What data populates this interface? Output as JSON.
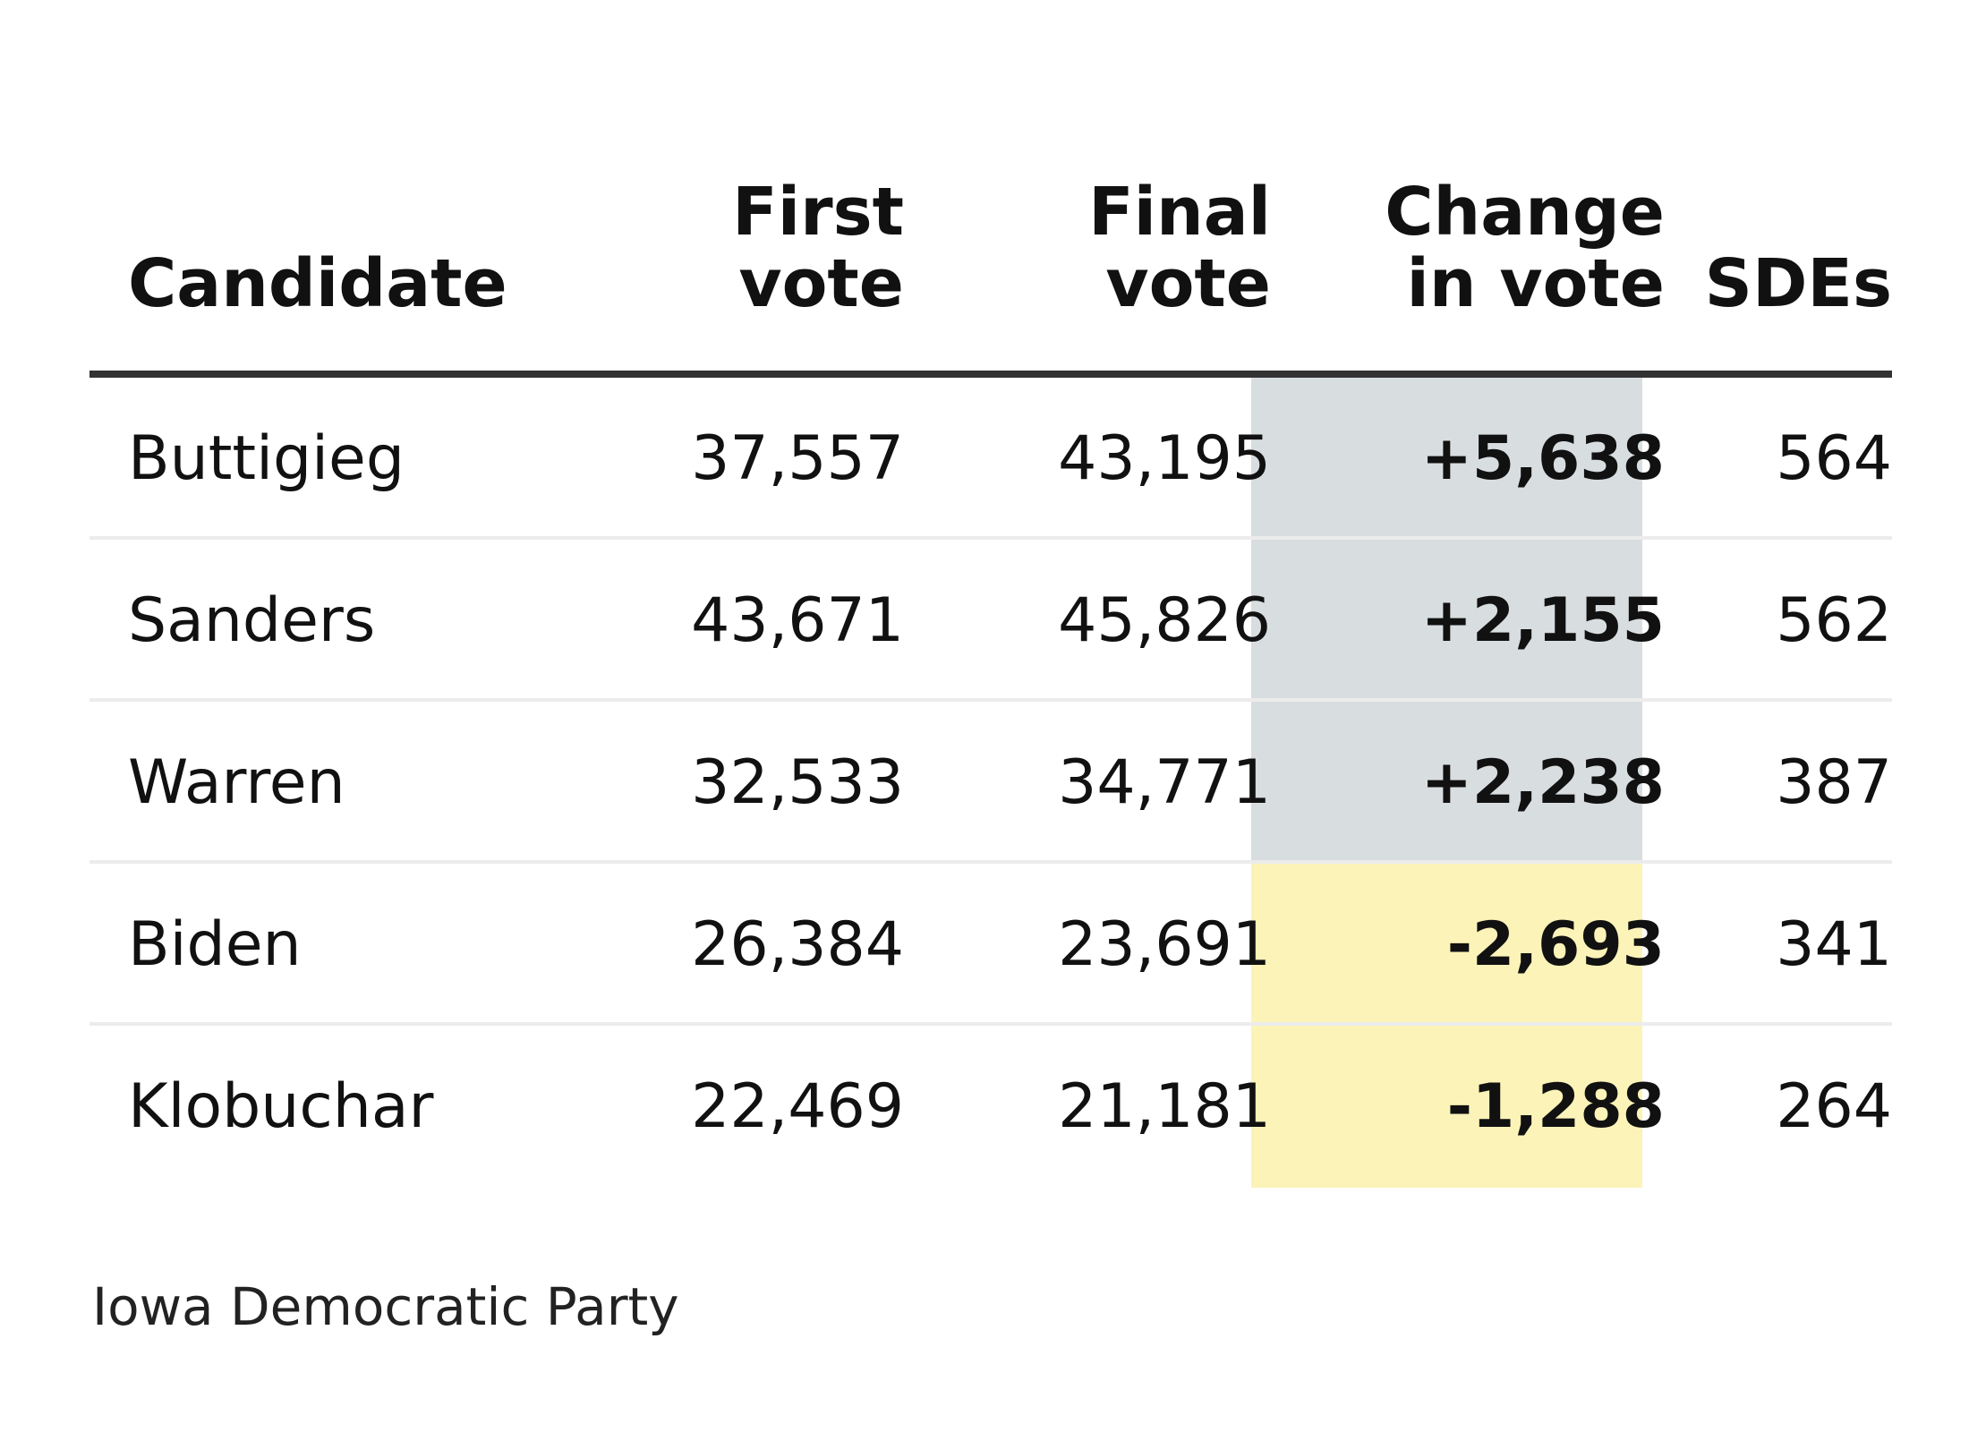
{
  "chart_data": {
    "type": "table",
    "columns": [
      {
        "key": "candidate",
        "label_lines": [
          "Candidate"
        ]
      },
      {
        "key": "first_vote",
        "label_lines": [
          "First",
          "vote"
        ]
      },
      {
        "key": "final_vote",
        "label_lines": [
          "Final",
          "vote"
        ]
      },
      {
        "key": "change",
        "label_lines": [
          "Change",
          "in vote"
        ]
      },
      {
        "key": "sdes",
        "label_lines": [
          "SDEs"
        ]
      }
    ],
    "rows": [
      {
        "candidate": "Buttigieg",
        "first_vote": "37,557",
        "final_vote": "43,195",
        "change": "+5,638",
        "sdes": "564"
      },
      {
        "candidate": "Sanders",
        "first_vote": "43,671",
        "final_vote": "45,826",
        "change": "+2,155",
        "sdes": "562"
      },
      {
        "candidate": "Warren",
        "first_vote": "32,533",
        "final_vote": "34,771",
        "change": "+2,238",
        "sdes": "387"
      },
      {
        "candidate": "Biden",
        "first_vote": "26,384",
        "final_vote": "23,691",
        "change": "-2,693",
        "sdes": "341"
      },
      {
        "candidate": "Klobuchar",
        "first_vote": "22,469",
        "final_vote": "21,181",
        "change": "-1,288",
        "sdes": "264"
      }
    ],
    "colors": {
      "positive_change": "#d8dde0",
      "negative_change": "#fbf3b8",
      "header_rule": "#333333",
      "row_rule": "#ececec"
    }
  },
  "source": "Iowa Democratic Party"
}
